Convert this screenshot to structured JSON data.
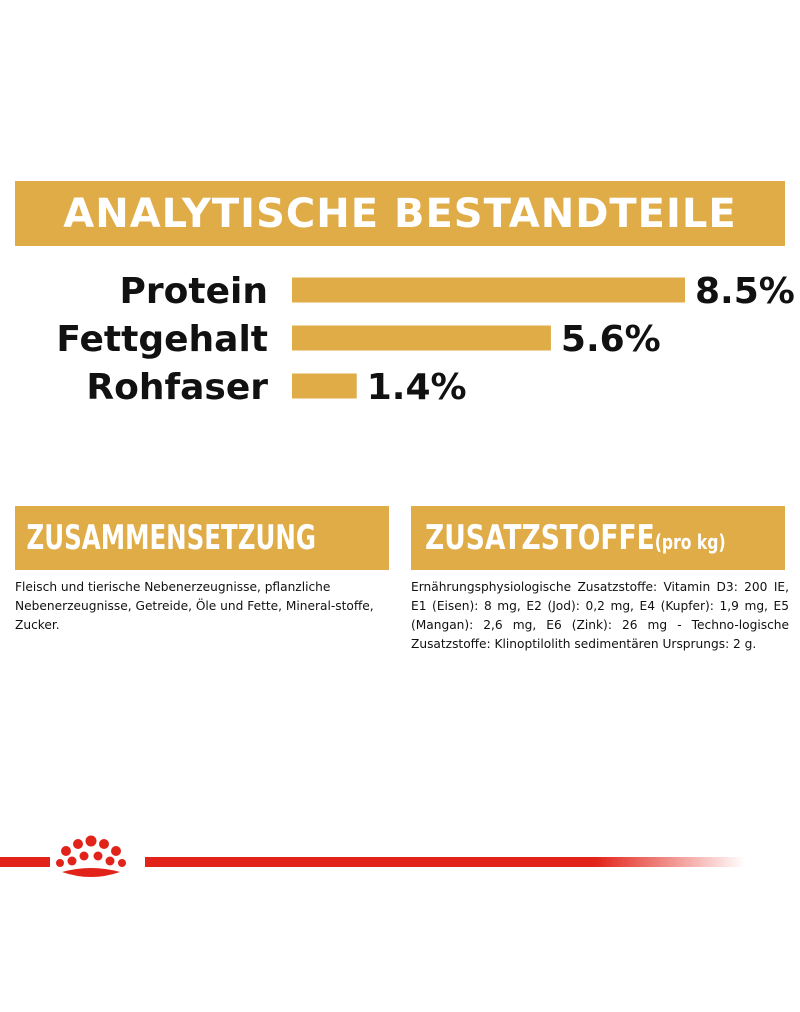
{
  "banner": {
    "title": "ANALYTISCHE BESTANDTEILE"
  },
  "chart_data": {
    "type": "bar",
    "orientation": "horizontal",
    "categories": [
      "Protein",
      "Fettgehalt",
      "Rohfaser"
    ],
    "values": [
      8.5,
      5.6,
      1.4
    ],
    "value_labels": [
      "8.5%",
      "5.6%",
      "1.4%"
    ],
    "xlim": [
      0,
      8.5
    ],
    "grid": false,
    "bar_color": "#e0ac48"
  },
  "composition": {
    "title": "ZUSAMMENSETZUNG",
    "text": "Fleisch und tierische Nebenerzeugnisse, pflanzliche Nebenerzeugnisse, Getreide, Öle und Fette, Mineral-stoffe, Zucker."
  },
  "additives": {
    "title": "ZUSATZSTOFFE",
    "subtitle": "(pro kg)",
    "text": "Ernährungsphysiologische Zusatzstoffe: Vitamin D3: 200 IE, E1 (Eisen): 8 mg, E2 (Jod): 0,2 mg, E4 (Kupfer): 1,9 mg, E5 (Mangan): 2,6 mg, E6 (Zink): 26 mg - Techno-logische Zusatzstoffe: Klinoptilolith sedimentären Ursprungs: 2 g."
  },
  "colors": {
    "accent": "#e0ac48",
    "brand_red": "#e2231a"
  },
  "icons": {
    "brand": "crown-icon"
  }
}
